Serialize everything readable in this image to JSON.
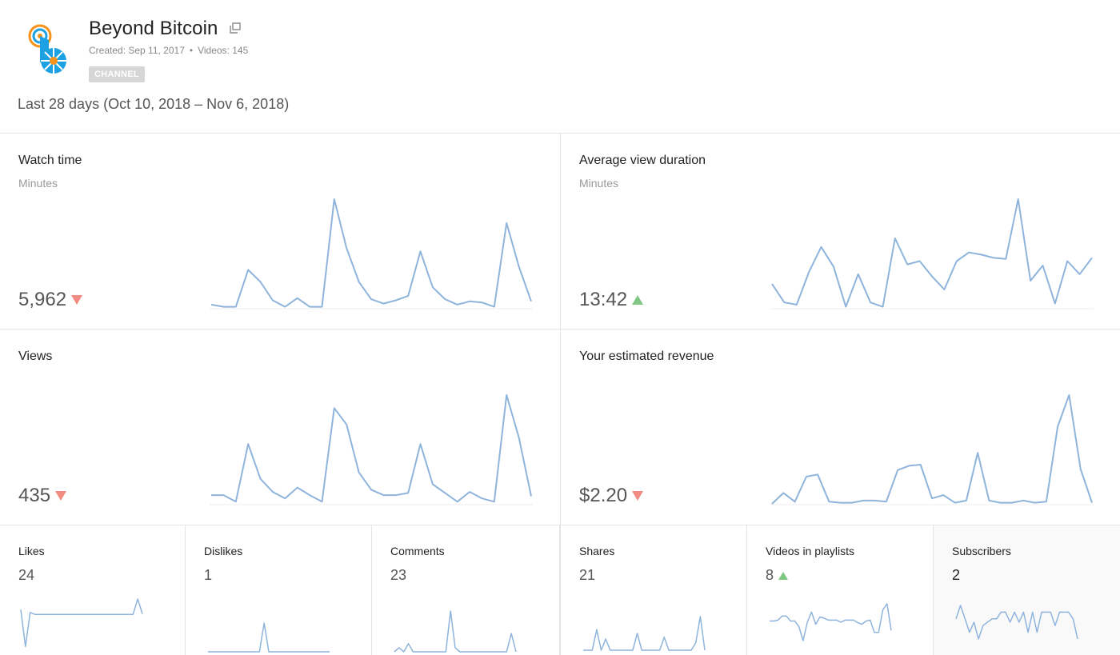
{
  "channel": {
    "title": "Beyond Bitcoin",
    "created": "Created: Sep 11, 2017",
    "separator": "•",
    "videos": "Videos: 145",
    "badge": "CHANNEL",
    "logo_icon": "beyond-bitcoin-logo",
    "external_icon": "open-external-icon"
  },
  "date_range": "Last 28 days (Oct 10, 2018 – Nov 6, 2018)",
  "colors": {
    "line": "#8fb4dc",
    "down": "#f28b82",
    "up": "#81c784",
    "logo_blue": "#1da1e2",
    "logo_orange": "#f7931a"
  },
  "metrics": {
    "watch_time": {
      "title": "Watch time",
      "unit": "Minutes",
      "value": "5,962",
      "trend": "down"
    },
    "avg_view_duration": {
      "title": "Average view duration",
      "unit": "Minutes",
      "value": "13:42",
      "trend": "up"
    },
    "views": {
      "title": "Views",
      "value": "435",
      "trend": "down"
    },
    "revenue": {
      "title": "Your estimated revenue",
      "value": "$2.20",
      "trend": "down"
    }
  },
  "small_metrics": [
    {
      "title": "Likes",
      "value": "24",
      "trend": ""
    },
    {
      "title": "Dislikes",
      "value": "1",
      "trend": ""
    },
    {
      "title": "Comments",
      "value": "23",
      "trend": ""
    },
    {
      "title": "Shares",
      "value": "21",
      "trend": ""
    },
    {
      "title": "Videos in playlists",
      "value": "8",
      "trend": "up"
    },
    {
      "title": "Subscribers",
      "value": "2",
      "trend": "",
      "selected": true
    }
  ],
  "chart_data": [
    {
      "type": "line",
      "name": "Watch time",
      "values": [
        3,
        1,
        1,
        35,
        24,
        7,
        1,
        9,
        1,
        1,
        100,
        55,
        24,
        8,
        4,
        7,
        11,
        52,
        19,
        8,
        3,
        6,
        5,
        1,
        78,
        38,
        6
      ]
    },
    {
      "type": "line",
      "name": "Average view duration",
      "values": [
        22,
        5,
        3,
        33,
        56,
        38,
        1,
        31,
        5,
        1,
        64,
        40,
        43,
        29,
        17,
        43,
        51,
        49,
        46,
        45,
        100,
        25,
        39,
        4,
        43,
        31,
        46
      ]
    },
    {
      "type": "line",
      "name": "Views",
      "values": [
        8,
        8,
        2,
        55,
        23,
        11,
        5,
        15,
        8,
        2,
        88,
        73,
        29,
        13,
        8,
        8,
        10,
        55,
        18,
        10,
        2,
        11,
        5,
        2,
        100,
        61,
        7
      ]
    },
    {
      "type": "line",
      "name": "Your estimated revenue",
      "values": [
        0,
        10,
        2,
        25,
        27,
        2,
        1,
        1,
        3,
        3,
        2,
        31,
        35,
        36,
        5,
        8,
        1,
        3,
        47,
        3,
        1,
        1,
        3,
        1,
        2,
        71,
        100,
        32,
        1
      ]
    },
    {
      "type": "line",
      "name": "Likes",
      "values": [
        78,
        1,
        72,
        68,
        68,
        68,
        68,
        68,
        68,
        68,
        68,
        68,
        68,
        68,
        68,
        68,
        68,
        68,
        68,
        68,
        68,
        68,
        68,
        68,
        68,
        100,
        69
      ]
    },
    {
      "type": "line",
      "name": "Dislikes",
      "values": [
        0,
        0,
        0,
        0,
        0,
        0,
        0,
        0,
        0,
        0,
        0,
        0,
        100,
        0,
        0,
        0,
        0,
        0,
        0,
        0,
        0,
        0,
        0,
        0,
        0,
        0,
        0
      ]
    },
    {
      "type": "line",
      "name": "Comments",
      "values": [
        0,
        10,
        0,
        20,
        0,
        0,
        0,
        0,
        0,
        0,
        0,
        0,
        100,
        10,
        0,
        0,
        0,
        0,
        0,
        0,
        0,
        0,
        0,
        0,
        0,
        45,
        0
      ]
    },
    {
      "type": "line",
      "name": "Shares",
      "values": [
        0,
        0,
        0,
        55,
        0,
        30,
        0,
        0,
        0,
        0,
        0,
        0,
        45,
        0,
        0,
        0,
        0,
        0,
        35,
        0,
        0,
        0,
        0,
        0,
        0,
        20,
        90,
        0
      ]
    },
    {
      "type": "line",
      "name": "Videos in playlists",
      "values": [
        48,
        48,
        50,
        60,
        60,
        48,
        48,
        34,
        0,
        45,
        70,
        40,
        58,
        55,
        50,
        50,
        50,
        45,
        50,
        50,
        50,
        44,
        40,
        48,
        50,
        20,
        20,
        75,
        90,
        25
      ]
    },
    {
      "type": "line",
      "name": "Subscribers",
      "values": [
        60,
        100,
        60,
        20,
        50,
        0,
        40,
        50,
        60,
        60,
        80,
        80,
        50,
        80,
        50,
        80,
        20,
        80,
        20,
        80,
        80,
        80,
        40,
        80,
        80,
        80,
        60,
        0
      ]
    }
  ]
}
